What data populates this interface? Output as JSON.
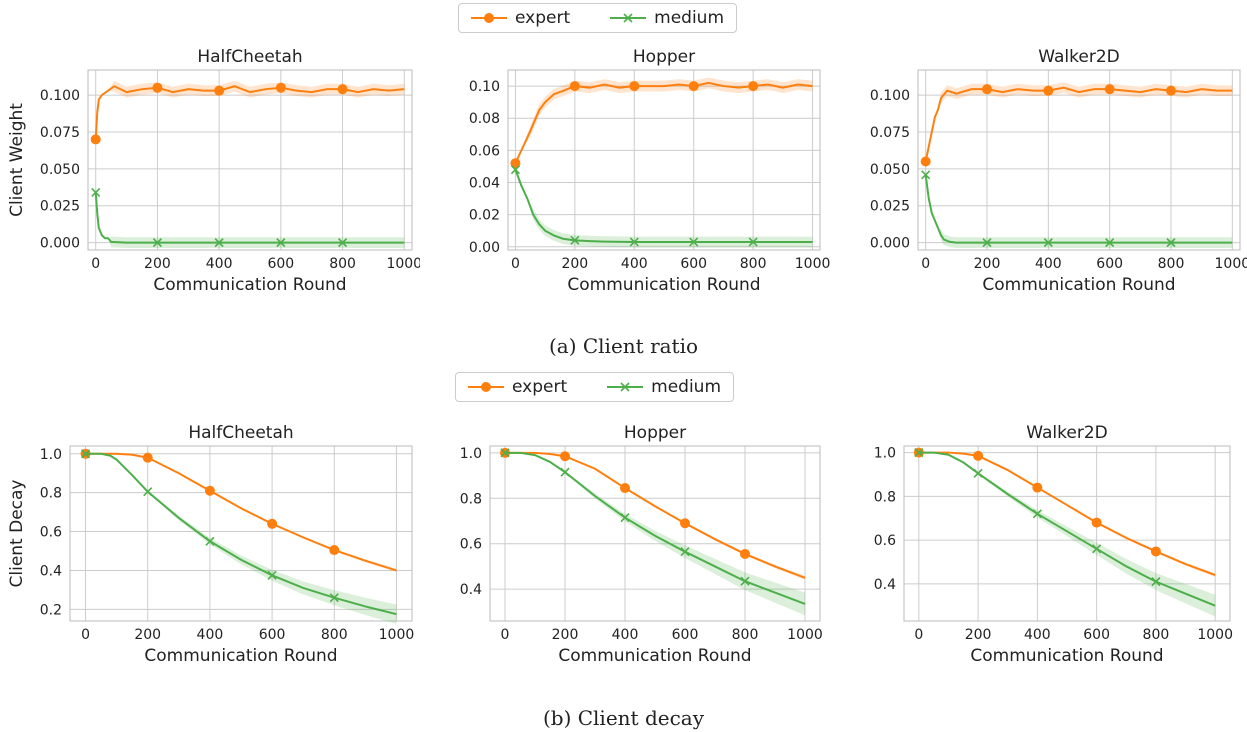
{
  "legend": {
    "expert": "expert",
    "medium": "medium"
  },
  "colors": {
    "expert": "#ff7f0e",
    "medium": "#4daf4a"
  },
  "captions": {
    "a": "(a) Client ratio",
    "b": "(b) Client decay"
  },
  "chart_data": [
    {
      "type": "line",
      "title": "HalfCheetah",
      "xlabel": "Communication Round",
      "ylabel": "Client Weight",
      "xlim": [
        -25,
        1025
      ],
      "ylim": [
        -0.005,
        0.117
      ],
      "xticks": [
        0,
        200,
        400,
        600,
        800,
        1000
      ],
      "xtick_labels": [
        "0",
        "200",
        "400",
        "600",
        "800",
        "1000"
      ],
      "yticks": [
        0,
        0.025,
        0.05,
        0.075,
        0.1
      ],
      "ytick_labels": [
        "0.000",
        "0.025",
        "0.050",
        "0.075",
        "0.100"
      ],
      "series": [
        {
          "name": "expert",
          "x": [
            0,
            5,
            10,
            20,
            40,
            60,
            100,
            150,
            200,
            250,
            300,
            350,
            400,
            450,
            500,
            550,
            600,
            650,
            700,
            750,
            800,
            850,
            900,
            950,
            1000
          ],
          "y": [
            0.07,
            0.088,
            0.097,
            0.1,
            0.103,
            0.106,
            0.102,
            0.104,
            0.105,
            0.102,
            0.104,
            0.103,
            0.103,
            0.106,
            0.102,
            0.104,
            0.105,
            0.103,
            0.102,
            0.104,
            0.104,
            0.102,
            0.104,
            0.103,
            0.104
          ],
          "markers": [
            0,
            200,
            400,
            600,
            800
          ],
          "marker": "circle"
        },
        {
          "name": "medium",
          "x": [
            0,
            5,
            10,
            20,
            30,
            40,
            50,
            100,
            200,
            400,
            600,
            800,
            1000
          ],
          "y": [
            0.034,
            0.02,
            0.01,
            0.005,
            0.003,
            0.003,
            0.0005,
            0,
            0,
            0,
            0,
            0,
            0
          ],
          "markers": [
            0,
            200,
            400,
            600,
            800
          ],
          "marker": "x"
        }
      ]
    },
    {
      "type": "line",
      "title": "Hopper",
      "xlabel": "Communication Round",
      "ylabel": "",
      "xlim": [
        -25,
        1025
      ],
      "ylim": [
        -0.002,
        0.11
      ],
      "xticks": [
        0,
        200,
        400,
        600,
        800,
        1000
      ],
      "xtick_labels": [
        "0",
        "200",
        "400",
        "600",
        "800",
        "1000"
      ],
      "yticks": [
        0,
        0.02,
        0.04,
        0.06,
        0.08,
        0.1
      ],
      "ytick_labels": [
        "0.00",
        "0.02",
        "0.04",
        "0.06",
        "0.08",
        "0.10"
      ],
      "series": [
        {
          "name": "expert",
          "x": [
            0,
            20,
            50,
            80,
            100,
            130,
            160,
            200,
            250,
            300,
            350,
            400,
            450,
            500,
            550,
            600,
            650,
            700,
            750,
            800,
            850,
            900,
            950,
            1000
          ],
          "y": [
            0.052,
            0.06,
            0.072,
            0.085,
            0.09,
            0.095,
            0.097,
            0.1,
            0.099,
            0.101,
            0.099,
            0.1,
            0.1,
            0.1,
            0.101,
            0.1,
            0.102,
            0.1,
            0.099,
            0.1,
            0.101,
            0.099,
            0.101,
            0.1
          ],
          "markers": [
            0,
            200,
            400,
            600,
            800
          ],
          "marker": "circle"
        },
        {
          "name": "medium",
          "x": [
            0,
            20,
            40,
            60,
            80,
            100,
            130,
            160,
            200,
            250,
            300,
            400,
            500,
            600,
            700,
            800,
            900,
            1000
          ],
          "y": [
            0.048,
            0.038,
            0.03,
            0.02,
            0.014,
            0.01,
            0.007,
            0.005,
            0.004,
            0.0035,
            0.0032,
            0.003,
            0.003,
            0.003,
            0.003,
            0.003,
            0.003,
            0.003
          ],
          "markers": [
            0,
            200,
            400,
            600,
            800
          ],
          "marker": "x"
        }
      ]
    },
    {
      "type": "line",
      "title": "Walker2D",
      "xlabel": "Communication Round",
      "ylabel": "",
      "xlim": [
        -25,
        1025
      ],
      "ylim": [
        -0.005,
        0.117
      ],
      "xticks": [
        0,
        200,
        400,
        600,
        800,
        1000
      ],
      "xtick_labels": [
        "0",
        "200",
        "400",
        "600",
        "800",
        "1000"
      ],
      "yticks": [
        0,
        0.025,
        0.05,
        0.075,
        0.1
      ],
      "ytick_labels": [
        "0.000",
        "0.025",
        "0.050",
        "0.075",
        "0.100"
      ],
      "series": [
        {
          "name": "expert",
          "x": [
            0,
            10,
            20,
            30,
            40,
            50,
            70,
            100,
            150,
            200,
            250,
            300,
            350,
            400,
            450,
            500,
            550,
            600,
            650,
            700,
            750,
            800,
            850,
            900,
            950,
            1000
          ],
          "y": [
            0.055,
            0.065,
            0.075,
            0.085,
            0.09,
            0.098,
            0.103,
            0.101,
            0.104,
            0.104,
            0.102,
            0.104,
            0.103,
            0.103,
            0.105,
            0.102,
            0.104,
            0.104,
            0.103,
            0.102,
            0.104,
            0.103,
            0.102,
            0.104,
            0.103,
            0.103
          ],
          "markers": [
            0,
            200,
            400,
            600,
            800
          ],
          "marker": "circle"
        },
        {
          "name": "medium",
          "x": [
            0,
            10,
            20,
            30,
            40,
            50,
            60,
            80,
            100,
            200,
            400,
            600,
            800,
            1000
          ],
          "y": [
            0.046,
            0.03,
            0.02,
            0.015,
            0.01,
            0.005,
            0.002,
            0.0005,
            0,
            0,
            0,
            0,
            0,
            0
          ],
          "markers": [
            0,
            200,
            400,
            600,
            800
          ],
          "marker": "x"
        }
      ]
    },
    {
      "type": "line",
      "title": "HalfCheetah",
      "xlabel": "Communication Round",
      "ylabel": "Client Decay",
      "xlim": [
        -50,
        1050
      ],
      "ylim": [
        0.14,
        1.04
      ],
      "xticks": [
        0,
        200,
        400,
        600,
        800,
        1000
      ],
      "xtick_labels": [
        "0",
        "200",
        "400",
        "600",
        "800",
        "1000"
      ],
      "yticks": [
        0.2,
        0.4,
        0.6,
        0.8,
        1.0
      ],
      "ytick_labels": [
        "0.2",
        "0.4",
        "0.6",
        "0.8",
        "1.0"
      ],
      "series": [
        {
          "name": "expert",
          "x": [
            0,
            50,
            100,
            150,
            200,
            300,
            400,
            500,
            600,
            700,
            800,
            900,
            1000
          ],
          "y": [
            1.0,
            1.0,
            1.0,
            0.995,
            0.98,
            0.9,
            0.81,
            0.72,
            0.64,
            0.57,
            0.505,
            0.45,
            0.4
          ],
          "markers": [
            0,
            200,
            400,
            600,
            800
          ],
          "marker": "circle"
        },
        {
          "name": "medium",
          "x": [
            0,
            50,
            80,
            100,
            150,
            200,
            300,
            400,
            500,
            600,
            700,
            800,
            900,
            1000
          ],
          "y": [
            1.0,
            1.0,
            0.99,
            0.97,
            0.89,
            0.805,
            0.67,
            0.55,
            0.455,
            0.375,
            0.31,
            0.26,
            0.215,
            0.175
          ],
          "markers": [
            0,
            200,
            400,
            600,
            800
          ],
          "marker": "x"
        }
      ]
    },
    {
      "type": "line",
      "title": "Hopper",
      "xlabel": "Communication Round",
      "ylabel": "",
      "xlim": [
        -50,
        1050
      ],
      "ylim": [
        0.26,
        1.03
      ],
      "xticks": [
        0,
        200,
        400,
        600,
        800,
        1000
      ],
      "xtick_labels": [
        "0",
        "200",
        "400",
        "600",
        "800",
        "1000"
      ],
      "yticks": [
        0.4,
        0.6,
        0.8,
        1.0
      ],
      "ytick_labels": [
        "0.4",
        "0.6",
        "0.8",
        "1.0"
      ],
      "series": [
        {
          "name": "expert",
          "x": [
            0,
            50,
            100,
            150,
            200,
            300,
            400,
            500,
            600,
            700,
            800,
            900,
            1000
          ],
          "y": [
            1.0,
            1.0,
            1.0,
            0.995,
            0.985,
            0.93,
            0.845,
            0.765,
            0.69,
            0.62,
            0.555,
            0.5,
            0.45
          ],
          "markers": [
            0,
            200,
            400,
            600,
            800
          ],
          "marker": "circle"
        },
        {
          "name": "medium",
          "x": [
            0,
            50,
            100,
            150,
            200,
            300,
            400,
            500,
            600,
            700,
            800,
            900,
            1000
          ],
          "y": [
            1.0,
            1.0,
            0.99,
            0.96,
            0.915,
            0.81,
            0.715,
            0.635,
            0.565,
            0.5,
            0.435,
            0.385,
            0.335
          ],
          "markers": [
            0,
            200,
            400,
            600,
            800
          ],
          "marker": "x"
        }
      ]
    },
    {
      "type": "line",
      "title": "Walker2D",
      "xlabel": "Communication Round",
      "ylabel": "",
      "xlim": [
        -50,
        1050
      ],
      "ylim": [
        0.23,
        1.03
      ],
      "xticks": [
        0,
        200,
        400,
        600,
        800,
        1000
      ],
      "xtick_labels": [
        "0",
        "200",
        "400",
        "600",
        "800",
        "1000"
      ],
      "yticks": [
        0.4,
        0.6,
        0.8,
        1.0
      ],
      "ytick_labels": [
        "0.4",
        "0.6",
        "0.8",
        "1.0"
      ],
      "series": [
        {
          "name": "expert",
          "x": [
            0,
            50,
            100,
            150,
            200,
            300,
            400,
            500,
            600,
            700,
            800,
            900,
            1000
          ],
          "y": [
            1.0,
            1.0,
            1.0,
            0.995,
            0.985,
            0.92,
            0.84,
            0.76,
            0.68,
            0.61,
            0.548,
            0.49,
            0.44
          ],
          "markers": [
            0,
            200,
            400,
            600,
            800
          ],
          "marker": "circle"
        },
        {
          "name": "medium",
          "x": [
            0,
            50,
            100,
            150,
            200,
            300,
            400,
            500,
            600,
            700,
            800,
            900,
            1000
          ],
          "y": [
            1.0,
            1.0,
            0.99,
            0.955,
            0.905,
            0.81,
            0.72,
            0.64,
            0.56,
            0.48,
            0.41,
            0.355,
            0.3
          ],
          "markers": [
            0,
            200,
            400,
            600,
            800
          ],
          "marker": "x"
        }
      ]
    }
  ]
}
